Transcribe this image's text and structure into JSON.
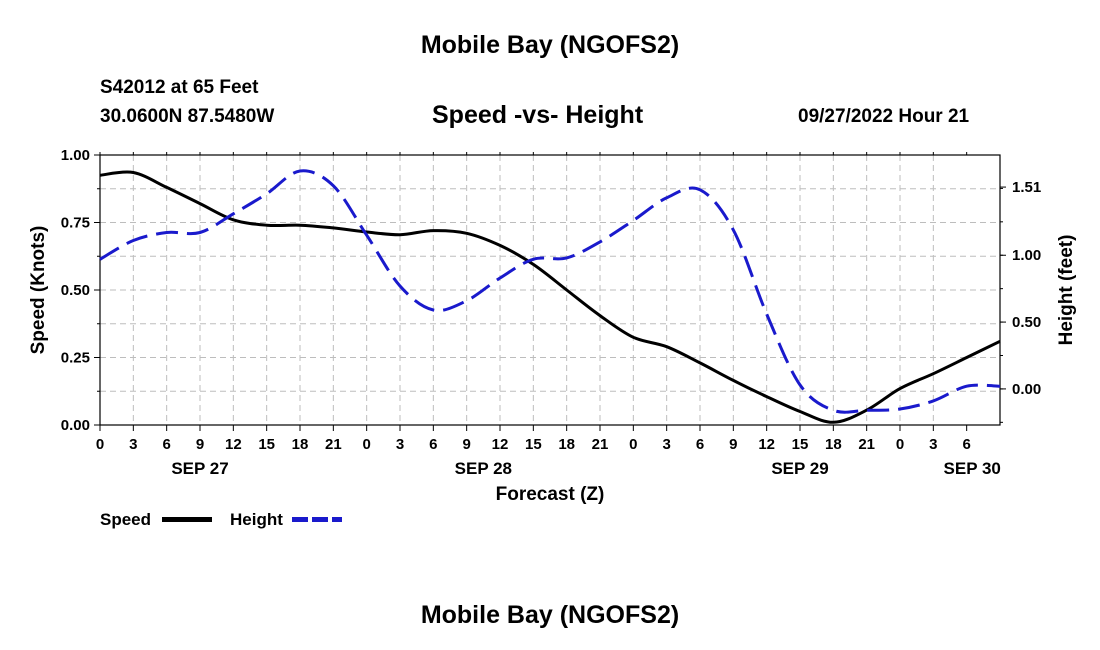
{
  "header": {
    "title": "Mobile Bay (NGOFS2)",
    "station": "S42012 at 65 Feet",
    "coords": "30.0600N  87.5480W",
    "subtitle": "Speed -vs- Height",
    "datetime": "09/27/2022 Hour 21"
  },
  "footer": {
    "title": "Mobile Bay (NGOFS2)"
  },
  "legend": {
    "speed_label": "Speed",
    "height_label": "Height",
    "speed_color": "#000000",
    "height_color": "#1a1acc"
  },
  "chart_data": {
    "type": "line",
    "title": "Speed -vs- Height",
    "xlabel": "Forecast (Z)",
    "ylabel": "Speed (Knots)",
    "y2label": "Height (feet)",
    "x_range_hours": [
      0,
      81
    ],
    "x_tick_labels": [
      "0",
      "3",
      "6",
      "9",
      "12",
      "15",
      "18",
      "21",
      "0",
      "3",
      "6",
      "9",
      "12",
      "15",
      "18",
      "21",
      "0",
      "3",
      "6",
      "9",
      "12",
      "15",
      "18",
      "21",
      "0",
      "3",
      "6"
    ],
    "date_labels": [
      {
        "text": "SEP 27",
        "hour": 9
      },
      {
        "text": "SEP 28",
        "hour": 34.5
      },
      {
        "text": "SEP 29",
        "hour": 63
      },
      {
        "text": "SEP 30",
        "hour": 78.5
      }
    ],
    "ylim": [
      0,
      1.0
    ],
    "y_ticks": [
      0.0,
      0.25,
      0.5,
      0.75,
      1.0
    ],
    "y_tick_labels": [
      "0.00",
      "0.25",
      "0.50",
      "0.75",
      "1.00"
    ],
    "y2lim": [
      -0.27,
      1.75
    ],
    "y2_ticks": [
      0.0,
      0.5,
      1.0,
      1.51
    ],
    "y2_tick_labels": [
      "0.00",
      "0.50",
      "1.00",
      "1.51"
    ],
    "grid": true,
    "series": [
      {
        "name": "Speed",
        "axis": "left",
        "style": "solid",
        "color": "#000000",
        "x": [
          0,
          3,
          6,
          9,
          12,
          15,
          18,
          21,
          24,
          27,
          30,
          33,
          36,
          39,
          42,
          45,
          48,
          51,
          54,
          57,
          60,
          63,
          66,
          69,
          72,
          75,
          78,
          81
        ],
        "y": [
          0.925,
          0.935,
          0.88,
          0.82,
          0.76,
          0.74,
          0.74,
          0.73,
          0.715,
          0.705,
          0.72,
          0.71,
          0.665,
          0.595,
          0.5,
          0.405,
          0.325,
          0.29,
          0.23,
          0.165,
          0.105,
          0.05,
          0.01,
          0.055,
          0.135,
          0.19,
          0.25,
          0.31
        ]
      },
      {
        "name": "Height",
        "axis": "right",
        "style": "dashed",
        "color": "#1a1acc",
        "x": [
          0,
          3,
          6,
          9,
          12,
          15,
          18,
          21,
          24,
          27,
          30,
          33,
          36,
          39,
          42,
          45,
          48,
          51,
          54,
          57,
          60,
          63,
          66,
          69,
          72,
          75,
          78,
          81
        ],
        "y": [
          0.97,
          1.11,
          1.17,
          1.17,
          1.31,
          1.46,
          1.63,
          1.52,
          1.15,
          0.77,
          0.59,
          0.66,
          0.83,
          0.97,
          0.98,
          1.1,
          1.26,
          1.43,
          1.49,
          1.19,
          0.56,
          0.03,
          -0.16,
          -0.16,
          -0.15,
          -0.09,
          0.02,
          0.02
        ]
      }
    ]
  }
}
